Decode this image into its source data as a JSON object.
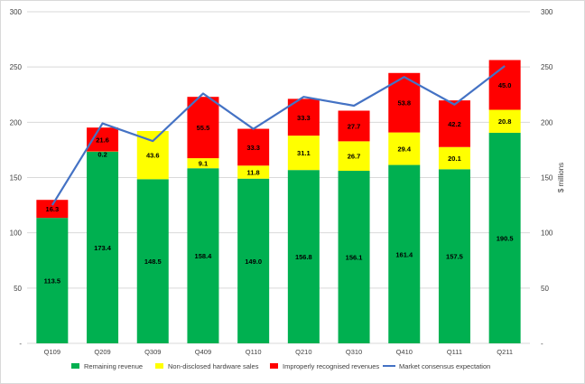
{
  "chart_data": {
    "type": "bar",
    "stacked": true,
    "categories": [
      "Q109",
      "Q209",
      "Q309",
      "Q409",
      "Q110",
      "Q210",
      "Q310",
      "Q410",
      "Q111",
      "Q211"
    ],
    "series": [
      {
        "name": "Remaining revenue",
        "color": "#00b050",
        "values": [
          113.5,
          173.4,
          148.5,
          158.4,
          149.0,
          156.8,
          156.1,
          161.4,
          157.5,
          190.5
        ],
        "labels": [
          "113.5",
          "173.4",
          "148.5",
          "158.4",
          "149.0",
          "156.8",
          "156.1",
          "161.4",
          "157.5",
          "190.5"
        ]
      },
      {
        "name": "Non-disclosed hardware sales",
        "color": "#ffff00",
        "values": [
          0,
          0.2,
          43.6,
          9.1,
          11.8,
          31.1,
          26.7,
          29.4,
          20.1,
          20.8
        ],
        "labels": [
          "",
          "0.2",
          "43.6",
          "9.1",
          "11.8",
          "31.1",
          "26.7",
          "29.4",
          "20.1",
          "20.8"
        ]
      },
      {
        "name": "Improperly recognised revenues",
        "color": "#ff0000",
        "values": [
          16.3,
          21.6,
          0,
          55.5,
          33.3,
          33.3,
          27.7,
          53.8,
          42.2,
          45.0
        ],
        "labels": [
          "16.3",
          "21.6",
          "",
          "55.5",
          "33.3",
          "33.3",
          "27.7",
          "53.8",
          "42.2",
          "45.0"
        ]
      }
    ],
    "line": {
      "name": "Market consensus expectation",
      "color": "#4472c4",
      "values": [
        125,
        199,
        183,
        226,
        194,
        223,
        215,
        241,
        216,
        251
      ]
    },
    "ylim": [
      0,
      300
    ],
    "y_ticks": [
      "-",
      "50",
      "100",
      "150",
      "200",
      "250",
      "300"
    ],
    "ylabel_right": "$ millions",
    "legend_position": "bottom",
    "grid": "horizontal"
  }
}
